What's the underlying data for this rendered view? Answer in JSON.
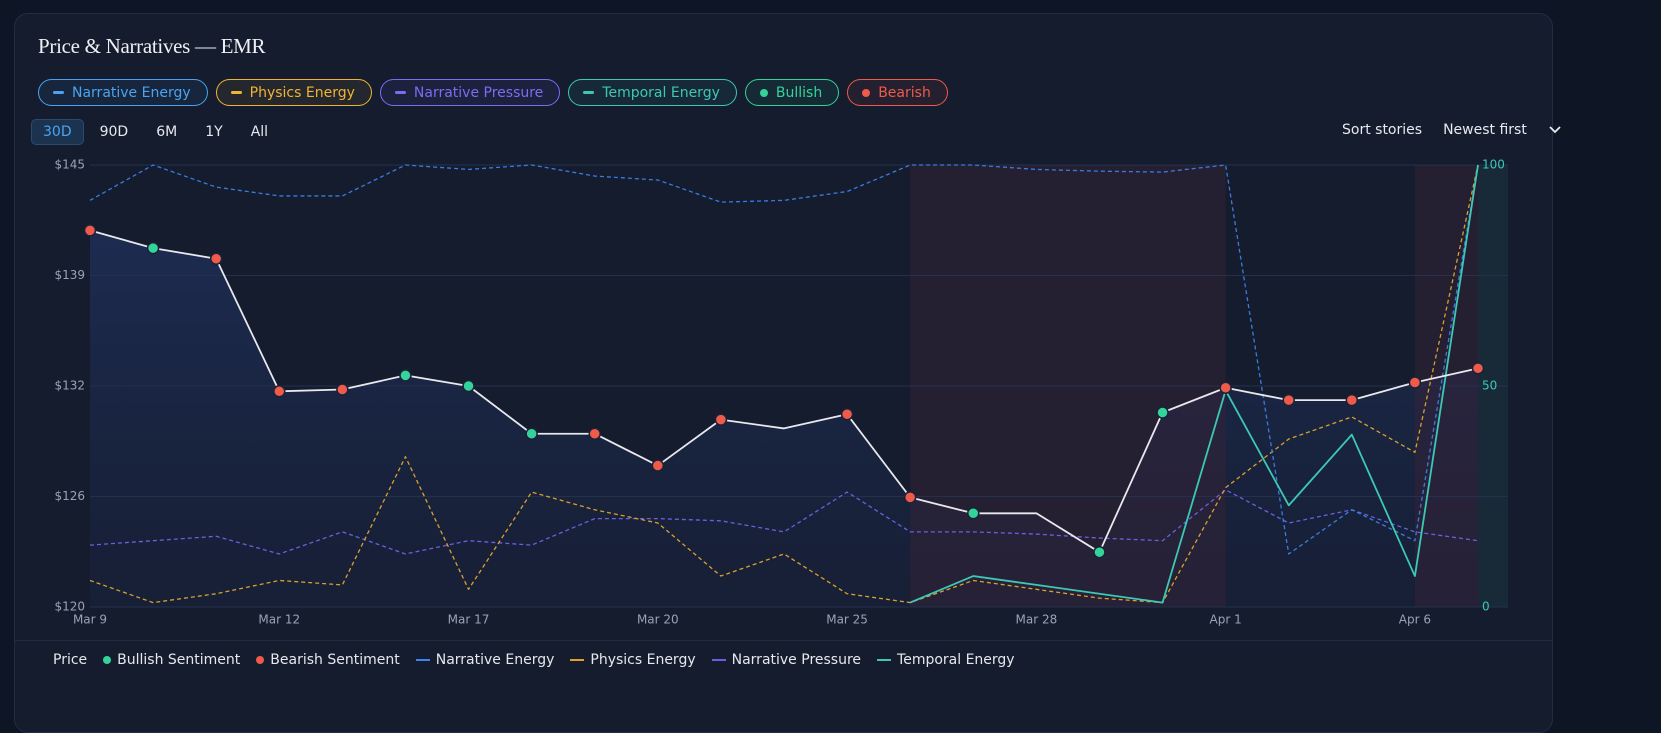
{
  "header": {
    "title": "Price & Narratives — EMR",
    "toggles": [
      {
        "name": "Narrative Energy",
        "color": "#4aa3f0",
        "marker": "line"
      },
      {
        "name": "Physics Energy",
        "color": "#f0b432",
        "marker": "line"
      },
      {
        "name": "Narrative Pressure",
        "color": "#7c6cf0",
        "marker": "line"
      },
      {
        "name": "Temporal Energy",
        "color": "#3cc8b4",
        "marker": "line"
      },
      {
        "name": "Bullish",
        "color": "#34d399",
        "marker": "dot"
      },
      {
        "name": "Bearish",
        "color": "#ef5a4a",
        "marker": "dot"
      }
    ],
    "ranges": [
      "30D",
      "90D",
      "6M",
      "1Y",
      "All"
    ],
    "active_range": 0,
    "sort_label": "Sort stories",
    "sort_value": "Newest first"
  },
  "chart_data": {
    "type": "line",
    "categories": [
      "Mar 9",
      null,
      null,
      "Mar 12",
      null,
      null,
      "Mar 17",
      null,
      null,
      "Mar 20",
      null,
      null,
      "Mar 25",
      null,
      null,
      "Mar 28",
      null,
      null,
      "Apr 1",
      null,
      null,
      "Apr 6",
      null
    ],
    "series": [
      {
        "name": "Price",
        "color": "#e8e8ee",
        "axis": "y",
        "dash": false,
        "values": [
          141.3,
          140.3,
          139.7,
          132.2,
          132.3,
          133.1,
          132.5,
          129.8,
          129.8,
          128.0,
          130.6,
          130.1,
          130.9,
          126.2,
          125.3,
          125.3,
          123.1,
          131.0,
          132.4,
          131.7,
          131.7,
          132.7,
          133.5
        ]
      },
      {
        "name": "Narrative Pressure",
        "color": "#6b5fe0",
        "axis": "y2",
        "dash": true,
        "values": [
          14,
          15,
          16,
          12,
          17,
          12,
          15,
          14,
          20,
          20,
          19.5,
          17,
          26,
          17,
          17,
          16.5,
          15.6,
          15,
          26.5,
          19,
          22,
          17,
          15
        ]
      },
      {
        "name": "Physics Energy",
        "color": "#d9a030",
        "axis": "y2",
        "dash": true,
        "values": [
          6,
          1,
          3,
          6,
          5,
          34,
          4,
          26,
          22,
          19,
          7,
          12,
          3,
          1,
          6,
          4,
          2,
          1,
          27,
          38,
          43,
          35,
          100
        ]
      },
      {
        "name": "Narrative Energy",
        "color": "#3b7be0",
        "axis": "y2",
        "dash": true,
        "values": [
          92,
          100,
          95,
          93,
          93,
          100,
          99,
          100,
          97.5,
          96.6,
          91.6,
          92,
          94,
          100,
          100,
          99,
          98.6,
          98.4,
          100,
          12,
          22,
          15,
          100
        ]
      },
      {
        "name": "Temporal Energy",
        "color": "#3cc8b4",
        "axis": "y2",
        "dash": false,
        "values": [
          null,
          null,
          null,
          null,
          null,
          null,
          null,
          null,
          null,
          null,
          null,
          null,
          null,
          1,
          7,
          5,
          3,
          1,
          49,
          23,
          39,
          7,
          100
        ]
      }
    ],
    "sentiment": [
      "Bearish",
      "Bullish",
      "Bearish",
      "Bearish",
      "Bearish",
      "Bullish",
      "Bullish",
      "Bullish",
      "Bearish",
      "Bearish",
      "Bearish",
      null,
      "Bearish",
      "Bearish",
      "Bullish",
      null,
      "Bullish",
      "Bullish",
      "Bearish",
      "Bearish",
      "Bearish",
      "Bearish",
      "Bearish"
    ],
    "sentiment_colors": {
      "Bullish": "#34d399",
      "Bearish": "#ef5a4a"
    },
    "shaded": [
      [
        13,
        18
      ],
      [
        21,
        22
      ]
    ],
    "ylim": [
      120,
      145
    ],
    "yticks": [
      {
        "value": 120,
        "label": "$120"
      },
      {
        "value": 126.25,
        "label": "$126"
      },
      {
        "value": 132.5,
        "label": "$132"
      },
      {
        "value": 138.75,
        "label": "$139"
      },
      {
        "value": 145,
        "label": "$145"
      }
    ],
    "y2lim": [
      0,
      100
    ],
    "y2ticks": [
      0,
      50,
      100
    ],
    "grid": true,
    "legend": [
      {
        "name": "Price",
        "color": null,
        "marker": "none"
      },
      {
        "name": "Bullish Sentiment",
        "color": "#34d399",
        "marker": "dot"
      },
      {
        "name": "Bearish Sentiment",
        "color": "#ef5a4a",
        "marker": "dot"
      },
      {
        "name": "Narrative Energy",
        "color": "#3b82f6",
        "marker": "line"
      },
      {
        "name": "Physics Energy",
        "color": "#e0a030",
        "marker": "line"
      },
      {
        "name": "Narrative Pressure",
        "color": "#6b5fe0",
        "marker": "line"
      },
      {
        "name": "Temporal Energy",
        "color": "#3cc8b4",
        "marker": "line"
      }
    ]
  }
}
